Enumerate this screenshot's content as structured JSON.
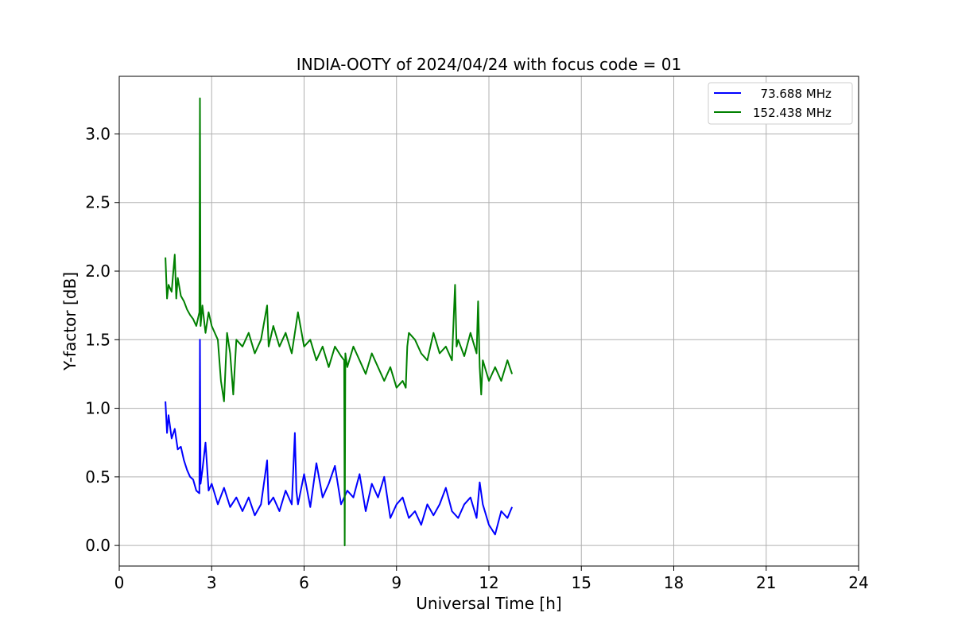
{
  "chart_data": {
    "type": "line",
    "title": "INDIA-OOTY of 2024/04/24 with focus code = 01",
    "xlabel": "Universal Time [h]",
    "ylabel": "Y-factor [dB]",
    "xlim": [
      0,
      24
    ],
    "ylim": [
      -0.15,
      3.42
    ],
    "xticks": [
      0,
      3,
      6,
      9,
      12,
      15,
      18,
      21,
      24
    ],
    "yticks": [
      0.0,
      0.5,
      1.0,
      1.5,
      2.0,
      2.5,
      3.0
    ],
    "xtick_labels": [
      "0",
      "3",
      "6",
      "9",
      "12",
      "15",
      "18",
      "21",
      "24"
    ],
    "ytick_labels": [
      "0.0",
      "0.5",
      "1.0",
      "1.5",
      "2.0",
      "2.5",
      "3.0"
    ],
    "grid": true,
    "legend_position": "top-right",
    "series": [
      {
        "name": "  73.688 MHz",
        "color": "#0000ff",
        "x": [
          1.5,
          1.55,
          1.6,
          1.7,
          1.8,
          1.9,
          2.0,
          2.1,
          2.2,
          2.3,
          2.4,
          2.5,
          2.6,
          2.62,
          2.64,
          2.7,
          2.8,
          2.9,
          3.0,
          3.2,
          3.4,
          3.6,
          3.8,
          4.0,
          4.2,
          4.4,
          4.6,
          4.8,
          4.85,
          5.0,
          5.2,
          5.4,
          5.6,
          5.7,
          5.75,
          5.8,
          6.0,
          6.2,
          6.4,
          6.6,
          6.8,
          7.0,
          7.2,
          7.4,
          7.6,
          7.8,
          8.0,
          8.2,
          8.4,
          8.6,
          8.8,
          9.0,
          9.2,
          9.4,
          9.6,
          9.8,
          10.0,
          10.2,
          10.4,
          10.6,
          10.8,
          11.0,
          11.2,
          11.4,
          11.6,
          11.7,
          11.8,
          12.0,
          12.2,
          12.4,
          12.6,
          12.75
        ],
        "y": [
          1.05,
          0.82,
          0.95,
          0.78,
          0.85,
          0.7,
          0.72,
          0.62,
          0.55,
          0.5,
          0.48,
          0.4,
          0.38,
          1.5,
          0.45,
          0.55,
          0.75,
          0.4,
          0.45,
          0.3,
          0.42,
          0.28,
          0.35,
          0.25,
          0.35,
          0.22,
          0.3,
          0.62,
          0.3,
          0.35,
          0.25,
          0.4,
          0.3,
          0.82,
          0.4,
          0.3,
          0.52,
          0.28,
          0.6,
          0.35,
          0.45,
          0.58,
          0.3,
          0.4,
          0.35,
          0.52,
          0.25,
          0.45,
          0.35,
          0.5,
          0.2,
          0.3,
          0.35,
          0.2,
          0.25,
          0.15,
          0.3,
          0.22,
          0.3,
          0.42,
          0.25,
          0.2,
          0.3,
          0.35,
          0.2,
          0.46,
          0.3,
          0.15,
          0.08,
          0.25,
          0.2,
          0.28
        ]
      },
      {
        "name": "152.438 MHz",
        "color": "#008000",
        "x": [
          1.5,
          1.55,
          1.6,
          1.7,
          1.8,
          1.85,
          1.9,
          2.0,
          2.1,
          2.2,
          2.3,
          2.4,
          2.5,
          2.6,
          2.62,
          2.64,
          2.7,
          2.8,
          2.9,
          3.0,
          3.2,
          3.3,
          3.4,
          3.5,
          3.6,
          3.7,
          3.8,
          4.0,
          4.2,
          4.4,
          4.6,
          4.8,
          4.85,
          5.0,
          5.2,
          5.4,
          5.6,
          5.8,
          6.0,
          6.2,
          6.4,
          6.6,
          6.8,
          7.0,
          7.2,
          7.3,
          7.32,
          7.34,
          7.4,
          7.6,
          7.8,
          8.0,
          8.2,
          8.4,
          8.6,
          8.8,
          9.0,
          9.2,
          9.3,
          9.35,
          9.4,
          9.6,
          9.8,
          10.0,
          10.2,
          10.4,
          10.6,
          10.8,
          10.9,
          10.95,
          11.0,
          11.2,
          11.4,
          11.6,
          11.65,
          11.7,
          11.75,
          11.8,
          12.0,
          12.2,
          12.4,
          12.6,
          12.75
        ],
        "y": [
          2.1,
          1.8,
          1.9,
          1.85,
          2.12,
          1.8,
          1.95,
          1.82,
          1.78,
          1.72,
          1.68,
          1.65,
          1.6,
          1.7,
          3.26,
          1.6,
          1.75,
          1.55,
          1.7,
          1.6,
          1.5,
          1.2,
          1.05,
          1.55,
          1.4,
          1.1,
          1.5,
          1.45,
          1.55,
          1.4,
          1.5,
          1.75,
          1.45,
          1.6,
          1.45,
          1.55,
          1.4,
          1.7,
          1.45,
          1.5,
          1.35,
          1.45,
          1.3,
          1.45,
          1.38,
          1.35,
          0.0,
          1.4,
          1.3,
          1.45,
          1.35,
          1.25,
          1.4,
          1.3,
          1.2,
          1.3,
          1.15,
          1.2,
          1.15,
          1.45,
          1.55,
          1.5,
          1.4,
          1.35,
          1.55,
          1.4,
          1.45,
          1.35,
          1.9,
          1.45,
          1.5,
          1.38,
          1.55,
          1.4,
          1.78,
          1.3,
          1.1,
          1.35,
          1.2,
          1.3,
          1.2,
          1.35,
          1.25
        ]
      }
    ]
  }
}
